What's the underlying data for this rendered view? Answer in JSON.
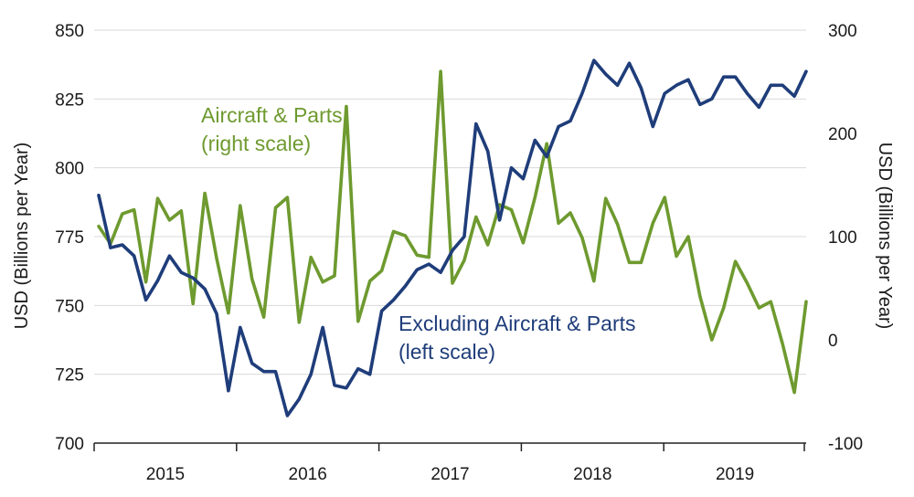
{
  "chart_data": {
    "type": "line",
    "left_axis": {
      "label": "USD (Billions per Year)",
      "range": [
        700,
        850
      ],
      "ticks": [
        700,
        725,
        750,
        775,
        800,
        825,
        850
      ]
    },
    "right_axis": {
      "label": "USD (Billions per Year)",
      "range": [
        -100,
        300
      ],
      "ticks": [
        -100,
        0,
        100,
        200,
        300
      ]
    },
    "x_axis": {
      "year_labels": [
        "2015",
        "2016",
        "2017",
        "2018",
        "2019"
      ]
    },
    "colors": {
      "excluding": "#1f3d7a",
      "aircraft": "#6e9a2f",
      "axis": "#222222"
    },
    "series": [
      {
        "name": "Excluding Aircraft & Parts",
        "annotation": [
          "Excluding Aircraft & Parts",
          "(left scale)"
        ],
        "axis": "left",
        "x": [
          0,
          1,
          2,
          3,
          4,
          5,
          6,
          7,
          8,
          9,
          10,
          11,
          12,
          13,
          14,
          15,
          16,
          17,
          18,
          19,
          20,
          21,
          22,
          23,
          24,
          25,
          26,
          27,
          28,
          29,
          30,
          31,
          32,
          33,
          34,
          35,
          36,
          37,
          38,
          39,
          40,
          41,
          42,
          43,
          44,
          45,
          46,
          47,
          48,
          49,
          50,
          51,
          52,
          53,
          54,
          55,
          56,
          57,
          58,
          59,
          60
        ],
        "values": [
          790,
          771,
          772,
          768,
          752,
          759,
          768,
          762,
          760,
          756,
          747,
          719,
          742,
          729,
          726,
          726,
          710,
          716,
          725,
          742,
          721,
          720,
          727,
          725,
          748,
          752,
          757,
          763,
          765,
          762,
          770,
          775,
          816,
          806,
          781,
          800,
          796,
          810,
          804,
          815,
          817,
          827,
          839,
          834,
          830,
          838,
          829,
          815,
          827,
          830,
          832,
          823,
          825,
          833,
          833,
          827,
          822,
          830,
          830,
          826,
          835
        ]
      },
      {
        "name": "Aircraft & Parts",
        "annotation": [
          "Aircraft & Parts",
          "(right scale)"
        ],
        "axis": "right",
        "x": [
          0,
          1,
          2,
          3,
          4,
          5,
          6,
          7,
          8,
          9,
          10,
          11,
          12,
          13,
          14,
          15,
          16,
          17,
          18,
          19,
          20,
          21,
          22,
          23,
          24,
          25,
          26,
          27,
          28,
          29,
          30,
          31,
          32,
          33,
          34,
          35,
          36,
          37,
          38,
          39,
          40,
          41,
          42,
          43,
          44,
          45,
          46,
          47,
          48,
          49,
          50,
          51,
          52,
          53,
          54,
          55,
          56,
          57,
          58,
          59,
          60
        ],
        "values": [
          110,
          93,
          122,
          126,
          56,
          137,
          116,
          125,
          35,
          142,
          79,
          26,
          130,
          59,
          22,
          128,
          138,
          17,
          80,
          56,
          62,
          226,
          18,
          57,
          67,
          105,
          101,
          82,
          80,
          260,
          55,
          77,
          119,
          92,
          131,
          126,
          94,
          138,
          190,
          113,
          123,
          99,
          57,
          137,
          112,
          75,
          75,
          113,
          138,
          81,
          100,
          42,
          0,
          31,
          76,
          55,
          31,
          37,
          -4,
          -51,
          37
        ]
      }
    ]
  }
}
